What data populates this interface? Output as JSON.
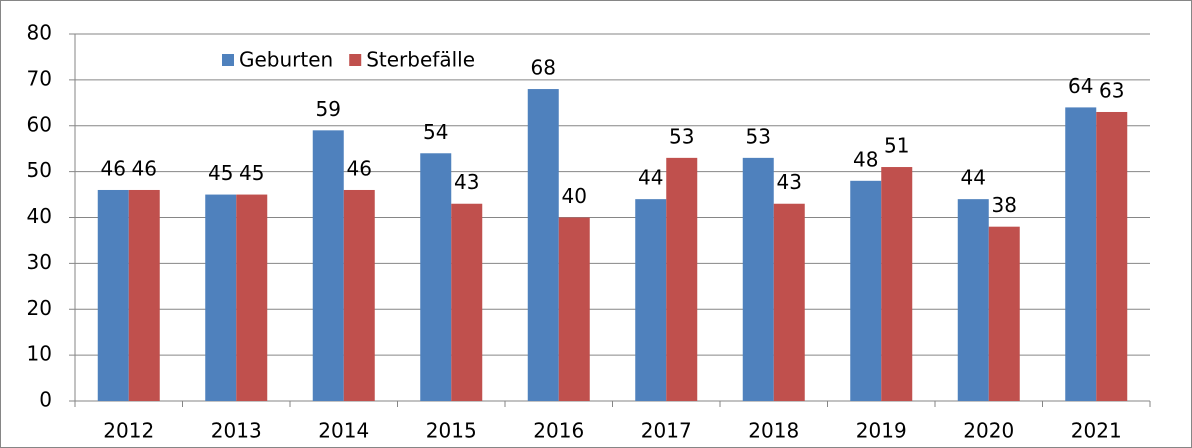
{
  "chart_data": {
    "type": "bar",
    "categories": [
      "2012",
      "2013",
      "2014",
      "2015",
      "2016",
      "2017",
      "2018",
      "2019",
      "2020",
      "2021"
    ],
    "series": [
      {
        "name": "Geburten",
        "color": "#4f81bd",
        "values": [
          46,
          45,
          59,
          54,
          68,
          44,
          53,
          48,
          44,
          64
        ]
      },
      {
        "name": "Sterbefälle",
        "color": "#c0504d",
        "values": [
          46,
          45,
          46,
          43,
          40,
          53,
          43,
          51,
          38,
          63
        ]
      }
    ],
    "ylim": [
      0,
      80
    ],
    "yticks": [
      0,
      10,
      20,
      30,
      40,
      50,
      60,
      70,
      80
    ],
    "grid": true,
    "legend": "top-left"
  }
}
